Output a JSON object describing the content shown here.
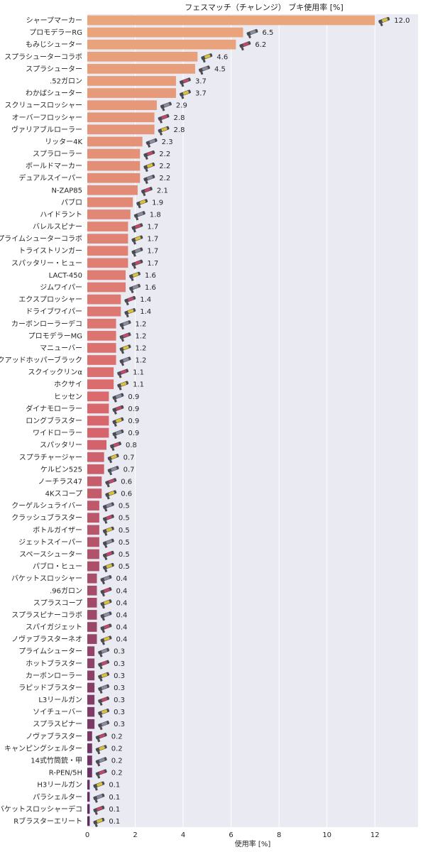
{
  "chart_data": {
    "type": "bar",
    "orientation": "horizontal",
    "title": "フェスマッチ（チャレンジ） ブキ使用率 [%]",
    "xlabel": "使用率 [%]",
    "ylabel": "",
    "xlim": [
      0,
      13.8
    ],
    "xticks": [
      0,
      2,
      4,
      6,
      8,
      10,
      12
    ],
    "grid": true,
    "background": "#eaeaf2",
    "palette": {
      "start": "#e9a67d",
      "mid": "#d9666c",
      "end": "#5e2a63"
    },
    "categories": [
      "シャープマーカー",
      "プロモデラーRG",
      "もみじシューター",
      "スプラシューターコラボ",
      "スプラシューター",
      ".52ガロン",
      "わかばシューター",
      "スクリュースロッシャー",
      "オーバーフロッシャー",
      "ヴァリアブルローラー",
      "リッター4K",
      "スプラローラー",
      "ボールドマーカー",
      "デュアルスイーパー",
      "N-ZAP85",
      "パブロ",
      "ハイドラント",
      "バレルスピナー",
      "プライムシューターコラボ",
      "トライストリンガー",
      "スパッタリー・ヒュー",
      "LACT-450",
      "ジムワイパー",
      "エクスプロッシャー",
      "ドライブワイパー",
      "カーボンローラーデコ",
      "プロモデラーMG",
      "マニューバー",
      "クアッドホッパーブラック",
      "スクイックリンα",
      "ホクサイ",
      "ヒッセン",
      "ダイナモローラー",
      "ロングブラスター",
      "ワイドローラー",
      "スパッタリー",
      "スプラチャージャー",
      "ケルビン525",
      "ノーチラス47",
      "4Kスコープ",
      "クーゲルシュライバー",
      "クラッシュブラスター",
      "ボトルガイザー",
      "ジェットスイーパー",
      "スペースシューター",
      "パブロ・ヒュー",
      "バケットスロッシャー",
      ".96ガロン",
      "スプラスコープ",
      "スプラスピナーコラボ",
      "スパイガジェット",
      "ノヴァブラスターネオ",
      "プライムシューター",
      "ホットブラスター",
      "カーボンローラー",
      "ラピッドブラスター",
      "L3リールガン",
      "ソイチューバー",
      "スプラスピナー",
      "ノヴァブラスター",
      "キャンピングシェルター",
      "14式竹筒銃・甲",
      "R-PEN/5H",
      "H3リールガン",
      "パラシェルター",
      "バケットスロッシャーデコ",
      "Rブラスターエリート"
    ],
    "values": [
      12.0,
      6.5,
      6.2,
      4.6,
      4.5,
      3.7,
      3.7,
      2.9,
      2.8,
      2.8,
      2.3,
      2.2,
      2.2,
      2.2,
      2.1,
      1.9,
      1.8,
      1.7,
      1.7,
      1.7,
      1.7,
      1.6,
      1.6,
      1.4,
      1.4,
      1.2,
      1.2,
      1.2,
      1.2,
      1.1,
      1.1,
      0.9,
      0.9,
      0.9,
      0.9,
      0.8,
      0.7,
      0.7,
      0.6,
      0.6,
      0.5,
      0.5,
      0.5,
      0.5,
      0.5,
      0.5,
      0.4,
      0.4,
      0.4,
      0.4,
      0.4,
      0.4,
      0.3,
      0.3,
      0.3,
      0.3,
      0.3,
      0.3,
      0.3,
      0.2,
      0.2,
      0.2,
      0.2,
      0.1,
      0.1,
      0.1,
      0.1
    ],
    "value_labels": [
      "12.0",
      "6.5",
      "6.2",
      "4.6",
      "4.5",
      "3.7",
      "3.7",
      "2.9",
      "2.8",
      "2.8",
      "2.3",
      "2.2",
      "2.2",
      "2.2",
      "2.1",
      "1.9",
      "1.8",
      "1.7",
      "1.7",
      "1.7",
      "1.7",
      "1.6",
      "1.6",
      "1.4",
      "1.4",
      "1.2",
      "1.2",
      "1.2",
      "1.2",
      "1.1",
      "1.1",
      "0.9",
      "0.9",
      "0.9",
      "0.9",
      "0.8",
      "0.7",
      "0.7",
      "0.6",
      "0.6",
      "0.5",
      "0.5",
      "0.5",
      "0.5",
      "0.5",
      "0.5",
      "0.4",
      "0.4",
      "0.4",
      "0.4",
      "0.4",
      "0.4",
      "0.3",
      "0.3",
      "0.3",
      "0.3",
      "0.3",
      "0.3",
      "0.3",
      "0.2",
      "0.2",
      "0.2",
      "0.2",
      "0.1",
      "0.1",
      "0.1",
      "0.1"
    ],
    "icons": "weapon-icon"
  }
}
